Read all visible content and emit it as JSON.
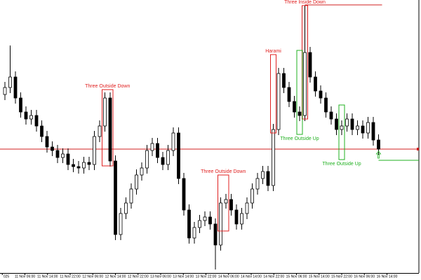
{
  "chart_data": {
    "type": "candlestick",
    "open": [
      255,
      265,
      280,
      250,
      230,
      220,
      225,
      210,
      195,
      180,
      175,
      165,
      170,
      155,
      152,
      150,
      158,
      155,
      195,
      210,
      250,
      160,
      55,
      85,
      100,
      120,
      140,
      150,
      175,
      185,
      165,
      155,
      175,
      200,
      135,
      90,
      50,
      65,
      75,
      80,
      70,
      40,
      100,
      105,
      90,
      70,
      85,
      100,
      120,
      135,
      145,
      125,
      205,
      285,
      265,
      245,
      230,
      225,
      315,
      280,
      260,
      250,
      230,
      220,
      205,
      210,
      220,
      205,
      210,
      200,
      215,
      190
    ],
    "high": [
      273,
      325,
      288,
      258,
      238,
      233,
      233,
      218,
      203,
      188,
      183,
      178,
      178,
      163,
      160,
      166,
      166,
      203,
      218,
      258,
      258,
      168,
      93,
      108,
      128,
      148,
      158,
      183,
      193,
      193,
      173,
      183,
      208,
      208,
      143,
      98,
      73,
      83,
      88,
      88,
      78,
      108,
      113,
      113,
      98,
      93,
      108,
      128,
      143,
      153,
      153,
      213,
      293,
      293,
      273,
      253,
      238,
      382,
      323,
      288,
      268,
      258,
      238,
      228,
      218,
      228,
      228,
      218,
      218,
      223,
      223,
      198
    ],
    "low": [
      247,
      257,
      242,
      222,
      212,
      212,
      202,
      187,
      172,
      167,
      157,
      157,
      147,
      144,
      142,
      142,
      147,
      147,
      187,
      202,
      152,
      47,
      47,
      77,
      92,
      112,
      132,
      142,
      167,
      157,
      147,
      147,
      167,
      127,
      82,
      42,
      42,
      57,
      67,
      62,
      5,
      32,
      92,
      82,
      62,
      62,
      77,
      92,
      112,
      127,
      117,
      117,
      197,
      257,
      237,
      222,
      217,
      217,
      272,
      252,
      242,
      222,
      212,
      197,
      197,
      202,
      197,
      197,
      192,
      192,
      182,
      169
    ],
    "close": [
      265,
      280,
      250,
      230,
      220,
      225,
      210,
      195,
      180,
      175,
      165,
      170,
      155,
      152,
      150,
      158,
      155,
      195,
      210,
      250,
      160,
      55,
      85,
      100,
      120,
      140,
      150,
      175,
      185,
      165,
      155,
      175,
      200,
      135,
      90,
      50,
      65,
      75,
      80,
      70,
      40,
      100,
      105,
      90,
      70,
      85,
      100,
      120,
      135,
      145,
      125,
      205,
      285,
      265,
      245,
      230,
      225,
      315,
      280,
      260,
      250,
      230,
      220,
      205,
      210,
      220,
      205,
      210,
      200,
      215,
      190,
      177
    ],
    "up_color": "#ffffff",
    "down_color": "#000000",
    "wick_color": "#000000",
    "ylim": [
      0,
      390
    ],
    "xticks": [
      {
        "value": -0.5,
        "label": "025"
      },
      {
        "value": 3.8,
        "label": "11 Nov 06:00"
      },
      {
        "value": 8.1,
        "label": "11 Nov 14:00"
      },
      {
        "value": 12.4,
        "label": "11 Nov 22:00"
      },
      {
        "value": 16.7,
        "label": "12 Nov 06:00"
      },
      {
        "value": 21,
        "label": "12 Nov 14:00"
      },
      {
        "value": 25.3,
        "label": "12 Nov 22:00"
      },
      {
        "value": 29.6,
        "label": "13 Nov 06:00"
      },
      {
        "value": 33.9,
        "label": "13 Nov 14:00"
      },
      {
        "value": 38.2,
        "label": "13 Nov 22:00"
      },
      {
        "value": 42.5,
        "label": "14 Nov 06:00"
      },
      {
        "value": 46.8,
        "label": "14 Nov 14:00"
      },
      {
        "value": 51.1,
        "label": "14 Nov 22:00"
      },
      {
        "value": 55.4,
        "label": "15 Nov 06:00"
      },
      {
        "value": 59.7,
        "label": "15 Nov 14:00"
      },
      {
        "value": 64,
        "label": "15 Nov 22:00"
      },
      {
        "value": 68.3,
        "label": "16 Nov 06:00"
      },
      {
        "value": 72.6,
        "label": "16 Nov 14:00"
      }
    ],
    "levels": [
      {
        "value": 177,
        "color": "#d02020"
      },
      {
        "value": 161,
        "color": "#20b020",
        "start": 71
      },
      {
        "value": 383,
        "color": "#d02020",
        "start": 57,
        "end": 71
      }
    ],
    "annotations": [
      {
        "text": "Three Outside Down",
        "color": "#e02020",
        "start": 19,
        "end": 20,
        "top": 262,
        "bottom": 153,
        "label_position": "above"
      },
      {
        "text": "Harami",
        "color": "#e02020",
        "start": 51,
        "end": 51,
        "top": 312,
        "bottom": 200,
        "label_position": "above"
      },
      {
        "text": "Three Inside Down",
        "color": "#e02020",
        "start": 57,
        "end": 57,
        "top": 382,
        "bottom": 220,
        "label_position": "above"
      },
      {
        "text": "Three Outside Up",
        "color": "#20b020",
        "start": 56,
        "end": 56,
        "top": 318,
        "bottom": 198,
        "label_position": "below"
      },
      {
        "text": "Three Outside Down",
        "color": "#e02020",
        "start": 41,
        "end": 42,
        "top": 140,
        "bottom": 60,
        "label_position": "above"
      },
      {
        "text": "Three Outside Up",
        "color": "#20b020",
        "start": 64,
        "end": 64,
        "top": 240,
        "bottom": 162,
        "label_position": "below"
      }
    ]
  }
}
